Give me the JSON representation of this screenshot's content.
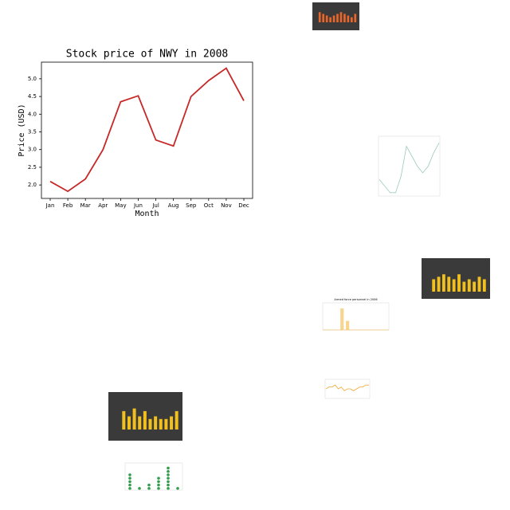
{
  "chart_data": [
    {
      "type": "line",
      "title": "Stock price of NWY in 2008",
      "xlabel": "Month",
      "ylabel": "Price (USD)",
      "categories": [
        "Jan",
        "Feb",
        "Mar",
        "Apr",
        "May",
        "Jun",
        "Jul",
        "Aug",
        "Sep",
        "Oct",
        "Nov",
        "Dec"
      ],
      "values": [
        2.1,
        1.82,
        2.17,
        3.0,
        4.35,
        4.52,
        3.27,
        3.1,
        4.5,
        4.95,
        5.3,
        4.38
      ],
      "color": "#c62828",
      "ylim": [
        1.62,
        5.47
      ],
      "yticks": [
        {
          "value": 2,
          "label": "2.0"
        },
        2.5,
        {
          "value": 3,
          "label": "3.0"
        },
        3.5,
        {
          "value": 4,
          "label": "4.0"
        },
        4.5,
        {
          "value": 5,
          "label": "5.0"
        }
      ]
    },
    {
      "type": "bar",
      "values": [
        6,
        5,
        4,
        3,
        4,
        5,
        6,
        5,
        4,
        3,
        5
      ],
      "color": "#e8662a",
      "ylim": [
        0,
        8
      ]
    },
    {
      "type": "line",
      "values": [
        2.5,
        1.5,
        0.5,
        0.5,
        3,
        7.5,
        6,
        4.5,
        3.5,
        4.5,
        6.5,
        8
      ],
      "color": "#9cc9c0",
      "ylim": [
        0,
        9
      ]
    },
    {
      "type": "bar",
      "values": [
        5,
        6,
        7,
        6,
        5,
        7,
        4,
        5,
        4,
        6,
        5
      ],
      "color": "#f2c01e",
      "ylim": [
        0,
        9
      ]
    },
    {
      "type": "bar",
      "title": "Armed force personnel in 2006",
      "values": [
        0,
        0,
        0,
        95,
        40,
        0,
        0,
        0,
        0,
        0,
        0,
        0
      ],
      "color": "#f7d58c",
      "ylim": [
        0,
        120
      ]
    },
    {
      "type": "line",
      "values": [
        5,
        6,
        6,
        7,
        5,
        6,
        4,
        5,
        5,
        4,
        5,
        6,
        6,
        7,
        7
      ],
      "color": "#f0a830",
      "ylim": [
        0,
        10
      ]
    },
    {
      "type": "bar",
      "values": [
        7,
        5,
        8,
        5,
        7,
        4,
        5,
        4,
        4,
        5,
        7
      ],
      "color": "#f2c01e",
      "ylim": [
        0,
        10
      ]
    },
    {
      "type": "dot",
      "values": [
        5,
        1,
        2,
        4,
        7,
        1
      ],
      "color": "#2e9e4a",
      "ylim": [
        0,
        8
      ]
    }
  ]
}
